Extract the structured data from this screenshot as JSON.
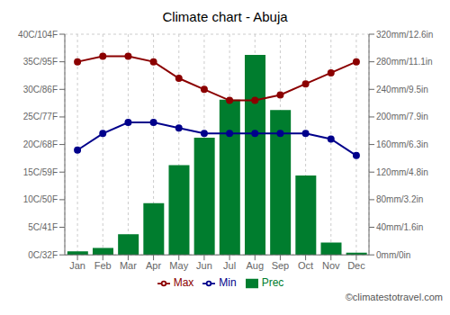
{
  "chart_data": {
    "type": "combo",
    "title": "Climate chart - Abuja",
    "categories": [
      "Jan",
      "Feb",
      "Mar",
      "Apr",
      "May",
      "Jun",
      "Jul",
      "Aug",
      "Sep",
      "Oct",
      "Nov",
      "Dec"
    ],
    "series": [
      {
        "name": "Prec",
        "type": "bar",
        "axis": "y2",
        "color": "#007d2e",
        "values": [
          5,
          10,
          30,
          75,
          130,
          170,
          225,
          290,
          210,
          115,
          18,
          3
        ]
      },
      {
        "name": "Min",
        "type": "line",
        "color": "#00008b",
        "marker": "circle",
        "values": [
          19,
          22,
          24,
          24,
          23,
          22,
          22,
          22,
          22,
          22,
          21,
          18
        ]
      },
      {
        "name": "Max",
        "type": "line",
        "color": "#8b0000",
        "marker": "circle",
        "values": [
          35,
          36,
          36,
          35,
          32,
          30,
          28,
          28,
          29,
          31,
          33,
          35
        ]
      }
    ],
    "ylim": [
      0,
      40
    ],
    "yticks": [
      {
        "value": 0,
        "label": "0C/32F"
      },
      {
        "value": 5,
        "label": "5C/41F"
      },
      {
        "value": 10,
        "label": "10C/50F"
      },
      {
        "value": 15,
        "label": "15C/59F"
      },
      {
        "value": 20,
        "label": "20C/68F"
      },
      {
        "value": 25,
        "label": "25C/77F"
      },
      {
        "value": 30,
        "label": "30C/86F"
      },
      {
        "value": 35,
        "label": "35C/95F"
      },
      {
        "value": 40,
        "label": "40C/104F"
      }
    ],
    "y2lim": [
      0,
      320
    ],
    "y2ticks": [
      {
        "value": 0,
        "label": "0mm/0in"
      },
      {
        "value": 40,
        "label": "40mm/1.6in"
      },
      {
        "value": 80,
        "label": "80mm/3.2in"
      },
      {
        "value": 120,
        "label": "120mm/4.8in"
      },
      {
        "value": 160,
        "label": "160mm/6.3in"
      },
      {
        "value": 200,
        "label": "200mm/7.9in"
      },
      {
        "value": 240,
        "label": "240mm/9.5in"
      },
      {
        "value": 280,
        "label": "280mm/11.1in"
      },
      {
        "value": 320,
        "label": "320mm/12.6in"
      }
    ],
    "grid": true,
    "legend": "bottom",
    "annotations": [
      {
        "text": "©climatestotravel.com"
      }
    ]
  }
}
